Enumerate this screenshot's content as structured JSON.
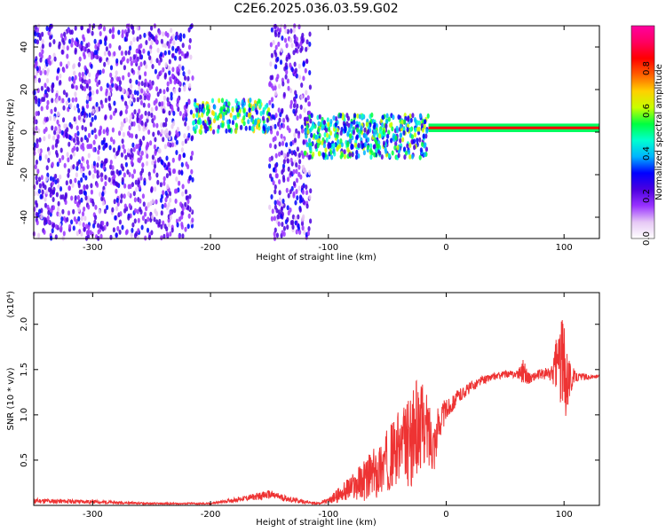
{
  "chart_data": [
    {
      "type": "heatmap",
      "title": "C2E6.2025.036.03.59.G02",
      "xlabel": "Height of straight line (km)",
      "ylabel": "Frequency (Hz)",
      "xlim": [
        -350,
        130
      ],
      "ylim": [
        -50,
        50
      ],
      "xticks": [
        -300,
        -200,
        -100,
        0,
        100
      ],
      "yticks": [
        -40,
        -20,
        0,
        20,
        40
      ],
      "colorbar": {
        "label": "Normalized spectral amplitude",
        "range": [
          0,
          1
        ],
        "ticks": [
          "0.0",
          "0.2",
          "0.4",
          "0.6",
          "0.8"
        ],
        "colors": [
          "#ffffff",
          "#e6c8f5",
          "#9933ff",
          "#4b00e0",
          "#0000ff",
          "#00b4ff",
          "#00ffd0",
          "#00ff40",
          "#c8ff00",
          "#ffd000",
          "#ff6000",
          "#ff0000",
          "#ff0060",
          "#ff00a0"
        ]
      },
      "regions": [
        {
          "x": [
            -350,
            -265
          ],
          "freq": [
            -50,
            50
          ],
          "level": 0.25
        },
        {
          "x": [
            -265,
            -215
          ],
          "freq": [
            -50,
            50
          ],
          "level": 0.1
        },
        {
          "x": [
            -150,
            -115
          ],
          "freq": [
            -50,
            50
          ],
          "level": 0.2
        },
        {
          "x": [
            -215,
            -150
          ],
          "freq": [
            0,
            15
          ],
          "level": 0.55
        },
        {
          "x": [
            -120,
            -15
          ],
          "freq": [
            -12,
            8
          ],
          "level": 0.5
        },
        {
          "x": [
            -15,
            130
          ],
          "freq": [
            0,
            4
          ],
          "level": 0.95
        }
      ]
    },
    {
      "type": "line",
      "xlabel": "Height of straight line (km)",
      "ylabel": "SNR (10 * v/v)",
      "y_multiplier": "(x10⁴)",
      "xlim": [
        -350,
        130
      ],
      "ylim": [
        0,
        2.35
      ],
      "xticks": [
        -300,
        -200,
        -100,
        0,
        100
      ],
      "yticks": [
        0.5,
        1.0,
        1.5,
        2.0
      ],
      "color": "#ee3333",
      "x": [
        -350,
        -300,
        -250,
        -200,
        -170,
        -150,
        -130,
        -110,
        -100,
        -80,
        -60,
        -50,
        -40,
        -30,
        -25,
        -20,
        -15,
        -10,
        -5,
        0,
        10,
        20,
        30,
        40,
        50,
        60,
        65,
        70,
        80,
        90,
        95,
        100,
        105,
        110,
        120,
        130
      ],
      "values": [
        0.05,
        0.04,
        0.02,
        0.02,
        0.08,
        0.12,
        0.06,
        0.02,
        0.05,
        0.2,
        0.35,
        0.5,
        0.65,
        0.7,
        0.85,
        0.9,
        0.8,
        0.7,
        0.95,
        1.05,
        1.2,
        1.3,
        1.38,
        1.42,
        1.45,
        1.45,
        1.5,
        1.4,
        1.45,
        1.45,
        1.6,
        1.5,
        1.4,
        1.42,
        1.42,
        1.42
      ],
      "noise_amplitude": [
        0.03,
        0.02,
        0.01,
        0.01,
        0.03,
        0.05,
        0.03,
        0.01,
        0.03,
        0.15,
        0.3,
        0.35,
        0.4,
        0.5,
        0.55,
        0.45,
        0.4,
        0.3,
        0.2,
        0.12,
        0.08,
        0.06,
        0.05,
        0.04,
        0.04,
        0.04,
        0.15,
        0.06,
        0.05,
        0.1,
        0.4,
        0.6,
        0.2,
        0.05,
        0.03,
        0.02
      ]
    }
  ]
}
